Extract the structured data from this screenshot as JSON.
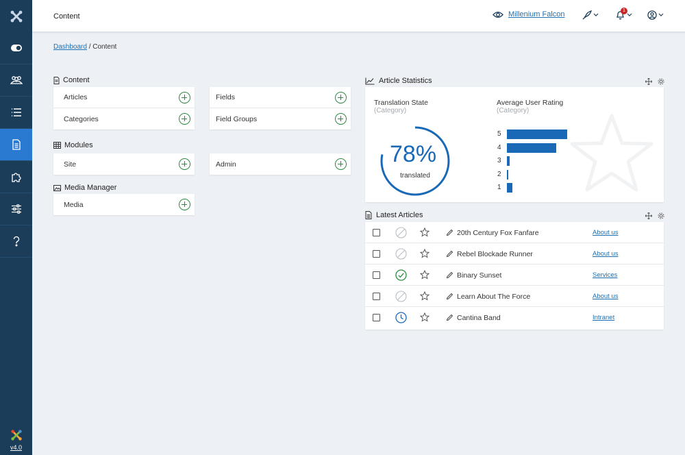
{
  "header": {
    "title": "Content",
    "site_name": "Millenium Falcon",
    "notification_count": "1"
  },
  "sidebar": {
    "version": "v4.0",
    "items": [
      {
        "icon": "toggle-icon"
      },
      {
        "icon": "users-icon"
      },
      {
        "icon": "list-icon"
      },
      {
        "icon": "file-icon",
        "active": true
      },
      {
        "icon": "puzzle-icon"
      },
      {
        "icon": "sliders-icon"
      },
      {
        "icon": "help-icon"
      }
    ]
  },
  "breadcrumb": {
    "link": "Dashboard",
    "separator": "/",
    "current": "Content"
  },
  "panels": {
    "content": {
      "title": "Content",
      "left": [
        "Articles",
        "Categories"
      ],
      "right": [
        "Fields",
        "Field Groups"
      ]
    },
    "modules": {
      "title": "Modules",
      "left": [
        "Site"
      ],
      "right": [
        "Admin"
      ]
    },
    "media": {
      "title": "Media Manager",
      "left": [
        "Media"
      ]
    }
  },
  "stats": {
    "title": "Article Statistics",
    "translation": {
      "label": "Translation State",
      "sub": "(Category)",
      "percent": "78%",
      "percent_value": 78,
      "caption": "translated"
    },
    "rating": {
      "label": "Average User Rating",
      "sub": "(Category)",
      "bars": [
        {
          "label": "5",
          "value": 100
        },
        {
          "label": "4",
          "value": 82
        },
        {
          "label": "3",
          "value": 5
        },
        {
          "label": "2",
          "value": 2
        },
        {
          "label": "1",
          "value": 9
        }
      ]
    }
  },
  "latest": {
    "title": "Latest Articles",
    "rows": [
      {
        "title": "20th Century Fox Fanfare",
        "category": "About us",
        "status": "unpublished"
      },
      {
        "title": "Rebel Blockade Runner",
        "category": "About us",
        "status": "unpublished"
      },
      {
        "title": "Binary Sunset",
        "category": "Services",
        "status": "published"
      },
      {
        "title": "Learn About The Force",
        "category": "About us",
        "status": "unpublished"
      },
      {
        "title": "Cantina Band",
        "category": "Intranet",
        "status": "pending"
      }
    ]
  },
  "colors": {
    "sidebar": "#1c3d5a",
    "active": "#2a7ad2",
    "accent": "#1a69b6",
    "success": "#2b8a3e"
  }
}
